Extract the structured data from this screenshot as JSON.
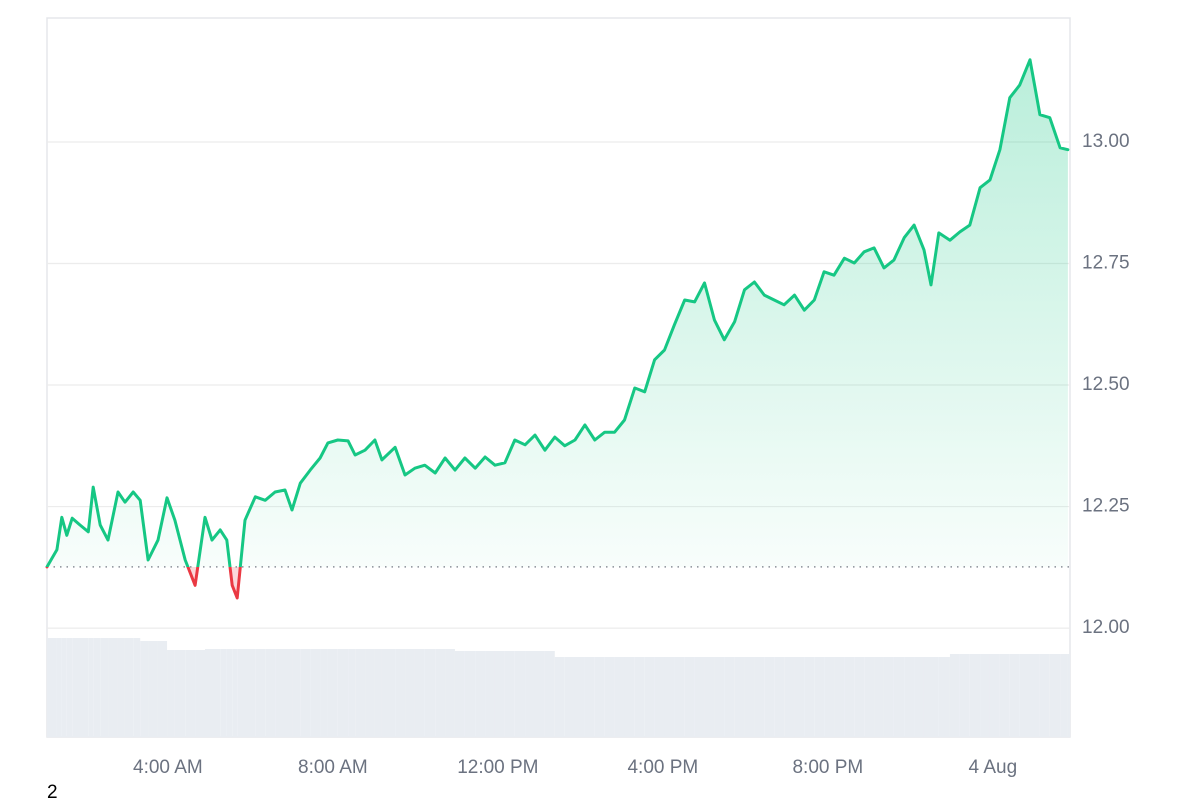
{
  "chart_data": {
    "type": "line",
    "x": [
      1.07,
      1.31,
      1.43,
      1.55,
      1.68,
      1.87,
      2.07,
      2.19,
      2.36,
      2.55,
      2.79,
      2.96,
      3.16,
      3.33,
      3.52,
      3.76,
      3.98,
      4.17,
      4.42,
      4.66,
      4.9,
      5.07,
      5.27,
      5.43,
      5.56,
      5.68,
      5.87,
      6.12,
      6.36,
      6.6,
      6.84,
      7.01,
      7.21,
      7.45,
      7.69,
      7.88,
      8.12,
      8.37,
      8.54,
      8.78,
      9.02,
      9.19,
      9.51,
      9.75,
      9.99,
      10.23,
      10.48,
      10.72,
      10.96,
      11.2,
      11.45,
      11.69,
      11.93,
      12.17,
      12.41,
      12.66,
      12.9,
      13.14,
      13.38,
      13.62,
      13.87,
      14.11,
      14.35,
      14.59,
      14.83,
      15.07,
      15.32,
      15.56,
      15.8,
      16.04,
      16.28,
      16.53,
      16.77,
      17.01,
      17.25,
      17.49,
      17.74,
      17.98,
      18.22,
      18.46,
      18.7,
      18.94,
      19.19,
      19.43,
      19.67,
      19.91,
      20.15,
      20.4,
      20.64,
      20.88,
      21.12,
      21.36,
      21.6,
      21.85,
      22.09,
      22.33,
      22.5,
      22.69,
      22.96,
      23.2,
      23.44,
      23.69,
      23.93,
      24.17,
      24.41,
      24.65,
      24.9,
      25.14,
      25.38,
      25.63,
      25.82
    ],
    "series": [
      {
        "color": "#16c784",
        "down_color": "#ea3943",
        "values": [
          12.126,
          12.161,
          12.228,
          12.191,
          12.226,
          12.212,
          12.198,
          12.29,
          12.212,
          12.181,
          12.28,
          12.259,
          12.28,
          12.263,
          12.14,
          12.181,
          12.268,
          12.222,
          12.14,
          12.088,
          12.228,
          12.181,
          12.202,
          12.181,
          12.088,
          12.062,
          12.222,
          12.27,
          12.263,
          12.28,
          12.284,
          12.243,
          12.298,
          12.325,
          12.35,
          12.381,
          12.387,
          12.385,
          12.356,
          12.366,
          12.387,
          12.346,
          12.372,
          12.315,
          12.329,
          12.335,
          12.319,
          12.35,
          12.325,
          12.35,
          12.329,
          12.352,
          12.335,
          12.34,
          12.387,
          12.377,
          12.397,
          12.366,
          12.393,
          12.375,
          12.387,
          12.418,
          12.387,
          12.403,
          12.403,
          12.428,
          12.494,
          12.486,
          12.552,
          12.572,
          12.624,
          12.675,
          12.671,
          12.71,
          12.634,
          12.593,
          12.63,
          12.696,
          12.712,
          12.685,
          12.675,
          12.665,
          12.685,
          12.654,
          12.675,
          12.733,
          12.726,
          12.761,
          12.751,
          12.774,
          12.782,
          12.741,
          12.757,
          12.803,
          12.829,
          12.778,
          12.706,
          12.813,
          12.798,
          12.815,
          12.829,
          12.906,
          12.922,
          12.984,
          13.091,
          13.117,
          13.169,
          13.056,
          13.05,
          12.988,
          12.984
        ]
      }
    ],
    "volume": {
      "color": "#e9edf2",
      "values": [
        99,
        99,
        99,
        99,
        99,
        99,
        99,
        99,
        99,
        99,
        99,
        99,
        99,
        96,
        96,
        96,
        87,
        87,
        87,
        87,
        88,
        88,
        88,
        88,
        88,
        88,
        88,
        88,
        88,
        88,
        88,
        88,
        88,
        88,
        88,
        88,
        88,
        88,
        88,
        88,
        88,
        88,
        88,
        88,
        88,
        88,
        88,
        88,
        86,
        86,
        86,
        86,
        86,
        86,
        86,
        86,
        86,
        86,
        80,
        80,
        80,
        80,
        80,
        80,
        80,
        80,
        80,
        80,
        80,
        80,
        80,
        80,
        80,
        80,
        80,
        80,
        80,
        80,
        80,
        80,
        80,
        80,
        80,
        80,
        80,
        80,
        80,
        80,
        80,
        80,
        80,
        80,
        80,
        80,
        80,
        80,
        80,
        80,
        83,
        83,
        83,
        83,
        83,
        83,
        83,
        83,
        83,
        83,
        83,
        83,
        83
      ],
      "lim": [
        0,
        100
      ]
    },
    "reference_line": 12.126,
    "xlim": [
      1.07,
      25.87
    ],
    "ylim": [
      11.776,
      13.255
    ],
    "xticks": [
      {
        "value": 4,
        "label": "4:00 AM"
      },
      {
        "value": 8,
        "label": "8:00 AM"
      },
      {
        "value": 12,
        "label": "12:00 PM"
      },
      {
        "value": 16,
        "label": "4:00 PM"
      },
      {
        "value": 20,
        "label": "8:00 PM"
      },
      {
        "value": 24,
        "label": "4 Aug"
      }
    ],
    "yticks": [
      {
        "value": 12,
        "label": "12.00"
      },
      12.25,
      {
        "value": 12.5,
        "label": "12.50"
      },
      12.75,
      {
        "value": 13,
        "label": "13.00"
      }
    ],
    "grid": true,
    "page_label": "2"
  }
}
